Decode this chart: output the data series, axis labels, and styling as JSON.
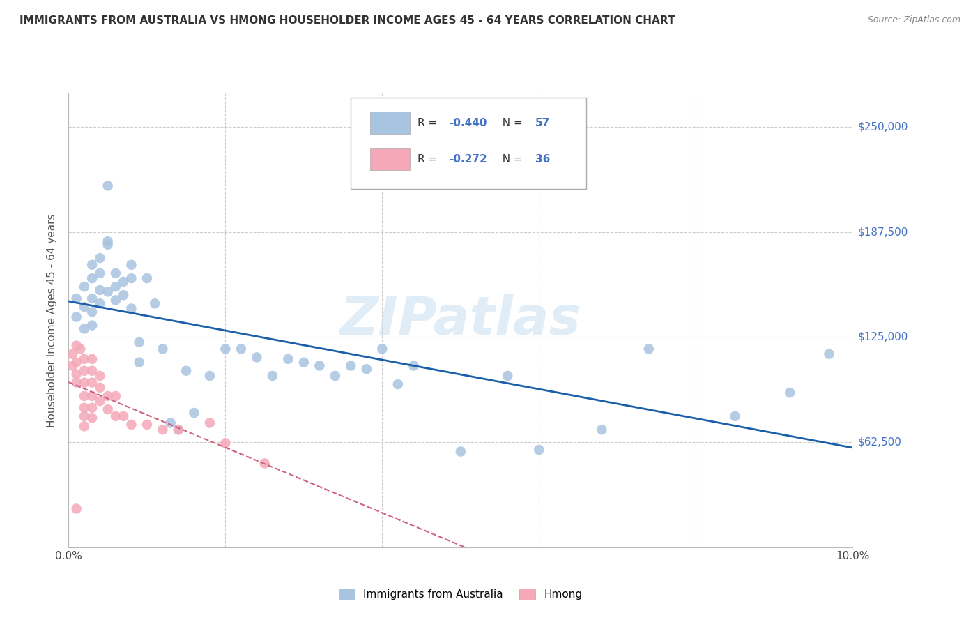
{
  "title": "IMMIGRANTS FROM AUSTRALIA VS HMONG HOUSEHOLDER INCOME AGES 45 - 64 YEARS CORRELATION CHART",
  "source": "Source: ZipAtlas.com",
  "ylabel": "Householder Income Ages 45 - 64 years",
  "xlim": [
    0.0,
    0.1
  ],
  "ylim": [
    0,
    270000
  ],
  "yticks": [
    62500,
    125000,
    187500,
    250000
  ],
  "ytick_labels": [
    "$62,500",
    "$125,000",
    "$187,500",
    "$250,000"
  ],
  "xticks": [
    0.0,
    0.02,
    0.04,
    0.06,
    0.08,
    0.1
  ],
  "xtick_labels": [
    "0.0%",
    "",
    "",
    "",
    "",
    "10.0%"
  ],
  "australia_r": "-0.440",
  "australia_n": "57",
  "hmong_r": "-0.272",
  "hmong_n": "36",
  "australia_color": "#a8c4e0",
  "hmong_color": "#f4a8b8",
  "australia_line_color": "#1a5fa8",
  "hmong_line_color": "#d06080",
  "watermark": "ZIPatlas",
  "australia_points_x": [
    0.001,
    0.001,
    0.002,
    0.002,
    0.002,
    0.003,
    0.003,
    0.003,
    0.003,
    0.003,
    0.004,
    0.004,
    0.004,
    0.004,
    0.005,
    0.005,
    0.005,
    0.005,
    0.006,
    0.006,
    0.006,
    0.007,
    0.007,
    0.008,
    0.008,
    0.008,
    0.009,
    0.009,
    0.01,
    0.011,
    0.012,
    0.013,
    0.014,
    0.015,
    0.016,
    0.018,
    0.02,
    0.022,
    0.024,
    0.026,
    0.028,
    0.03,
    0.032,
    0.034,
    0.036,
    0.038,
    0.04,
    0.042,
    0.044,
    0.05,
    0.056,
    0.06,
    0.068,
    0.074,
    0.085,
    0.092,
    0.097
  ],
  "australia_points_y": [
    148000,
    137000,
    155000,
    143000,
    130000,
    168000,
    160000,
    148000,
    140000,
    132000,
    172000,
    163000,
    153000,
    145000,
    180000,
    215000,
    182000,
    152000,
    163000,
    155000,
    147000,
    158000,
    150000,
    168000,
    160000,
    142000,
    122000,
    110000,
    160000,
    145000,
    118000,
    74000,
    70000,
    105000,
    80000,
    102000,
    118000,
    118000,
    113000,
    102000,
    112000,
    110000,
    108000,
    102000,
    108000,
    106000,
    118000,
    97000,
    108000,
    57000,
    102000,
    58000,
    70000,
    118000,
    78000,
    92000,
    115000
  ],
  "hmong_points_x": [
    0.0005,
    0.0005,
    0.001,
    0.001,
    0.001,
    0.001,
    0.001,
    0.0015,
    0.002,
    0.002,
    0.002,
    0.002,
    0.002,
    0.002,
    0.002,
    0.003,
    0.003,
    0.003,
    0.003,
    0.003,
    0.003,
    0.004,
    0.004,
    0.004,
    0.005,
    0.005,
    0.006,
    0.006,
    0.007,
    0.008,
    0.01,
    0.012,
    0.014,
    0.018,
    0.02,
    0.025
  ],
  "hmong_points_y": [
    115000,
    108000,
    120000,
    110000,
    103000,
    98000,
    23000,
    118000,
    112000,
    105000,
    98000,
    90000,
    83000,
    78000,
    72000,
    112000,
    105000,
    98000,
    90000,
    83000,
    77000,
    102000,
    95000,
    87000,
    90000,
    82000,
    90000,
    78000,
    78000,
    73000,
    73000,
    70000,
    70000,
    74000,
    62000,
    50000
  ]
}
